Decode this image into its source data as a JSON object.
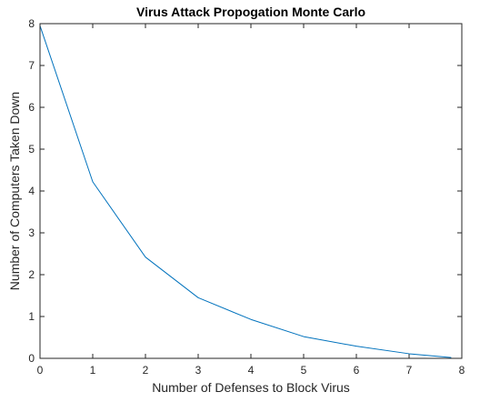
{
  "chart_data": {
    "type": "line",
    "title": "Virus Attack Propogation Monte Carlo",
    "xlabel": "Number of Defenses to Block Virus",
    "ylabel": "Number of Computers Taken Down",
    "xlim": [
      0,
      8
    ],
    "ylim": [
      0,
      8
    ],
    "xticks": [
      0,
      1,
      2,
      3,
      4,
      5,
      6,
      7,
      8
    ],
    "yticks": [
      0,
      1,
      2,
      3,
      4,
      5,
      6,
      7,
      8
    ],
    "grid": false,
    "series": [
      {
        "color": "#0072bd",
        "x": [
          0,
          1,
          2,
          3,
          4,
          5,
          6,
          7,
          7.8
        ],
        "y": [
          7.95,
          4.22,
          2.42,
          1.45,
          0.93,
          0.52,
          0.29,
          0.11,
          0.02
        ]
      }
    ]
  }
}
